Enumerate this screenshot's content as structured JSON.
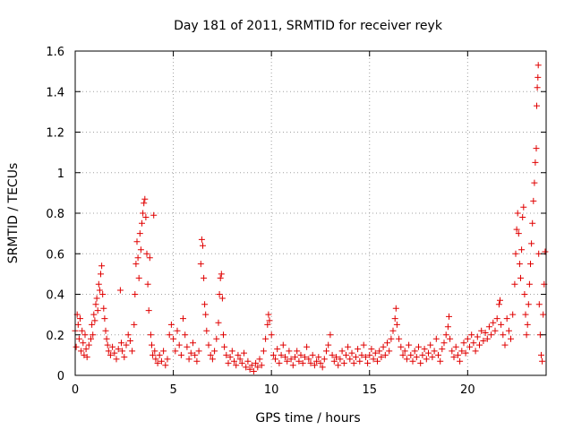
{
  "chart_data": {
    "type": "scatter",
    "title": "Day 181 of 2011, SRMTID for receiver reyk",
    "xlabel": "GPS time / hours",
    "ylabel": "SRMTID / TECUs",
    "xlim": [
      0,
      24
    ],
    "ylim": [
      0,
      1.6
    ],
    "x_ticks": [
      0,
      5,
      10,
      15,
      20
    ],
    "x_tick_labels": [
      "0",
      "5",
      "10",
      "15",
      "20"
    ],
    "y_ticks": [
      0,
      0.2,
      0.4,
      0.6,
      0.8,
      1.0,
      1.2,
      1.4,
      1.6
    ],
    "y_tick_labels": [
      "0",
      "0.2",
      "0.4",
      "0.6",
      "0.8",
      "1",
      "1.2",
      "1.4",
      "1.6"
    ],
    "grid": true,
    "marker": "plus",
    "color": "#e00000",
    "series": [
      {
        "name": "SRMTID",
        "points": [
          [
            0.0,
            0.22
          ],
          [
            0.05,
            0.14
          ],
          [
            0.1,
            0.3
          ],
          [
            0.15,
            0.25
          ],
          [
            0.2,
            0.18
          ],
          [
            0.25,
            0.28
          ],
          [
            0.3,
            0.12
          ],
          [
            0.35,
            0.22
          ],
          [
            0.4,
            0.16
          ],
          [
            0.45,
            0.1
          ],
          [
            0.5,
            0.2
          ],
          [
            0.55,
            0.13
          ],
          [
            0.6,
            0.09
          ],
          [
            0.7,
            0.15
          ],
          [
            0.8,
            0.18
          ],
          [
            0.85,
            0.25
          ],
          [
            0.9,
            0.2
          ],
          [
            0.95,
            0.3
          ],
          [
            1.0,
            0.27
          ],
          [
            1.05,
            0.35
          ],
          [
            1.1,
            0.38
          ],
          [
            1.15,
            0.32
          ],
          [
            1.2,
            0.45
          ],
          [
            1.25,
            0.42
          ],
          [
            1.3,
            0.5
          ],
          [
            1.35,
            0.54
          ],
          [
            1.4,
            0.4
          ],
          [
            1.45,
            0.33
          ],
          [
            1.5,
            0.28
          ],
          [
            1.55,
            0.22
          ],
          [
            1.6,
            0.18
          ],
          [
            1.65,
            0.15
          ],
          [
            1.7,
            0.12
          ],
          [
            1.8,
            0.1
          ],
          [
            1.9,
            0.14
          ],
          [
            2.0,
            0.11
          ],
          [
            2.1,
            0.08
          ],
          [
            2.2,
            0.13
          ],
          [
            2.3,
            0.42
          ],
          [
            2.35,
            0.16
          ],
          [
            2.4,
            0.12
          ],
          [
            2.5,
            0.09
          ],
          [
            2.6,
            0.15
          ],
          [
            2.7,
            0.2
          ],
          [
            2.8,
            0.17
          ],
          [
            2.9,
            0.12
          ],
          [
            3.0,
            0.25
          ],
          [
            3.05,
            0.4
          ],
          [
            3.1,
            0.55
          ],
          [
            3.15,
            0.66
          ],
          [
            3.2,
            0.58
          ],
          [
            3.25,
            0.48
          ],
          [
            3.3,
            0.7
          ],
          [
            3.35,
            0.62
          ],
          [
            3.4,
            0.75
          ],
          [
            3.45,
            0.8
          ],
          [
            3.5,
            0.85
          ],
          [
            3.55,
            0.87
          ],
          [
            3.6,
            0.78
          ],
          [
            3.65,
            0.6
          ],
          [
            3.7,
            0.45
          ],
          [
            3.75,
            0.32
          ],
          [
            3.8,
            0.58
          ],
          [
            3.85,
            0.2
          ],
          [
            3.9,
            0.15
          ],
          [
            3.95,
            0.1
          ],
          [
            4.0,
            0.79
          ],
          [
            4.05,
            0.12
          ],
          [
            4.1,
            0.08
          ],
          [
            4.2,
            0.06
          ],
          [
            4.3,
            0.1
          ],
          [
            4.4,
            0.07
          ],
          [
            4.5,
            0.12
          ],
          [
            4.6,
            0.05
          ],
          [
            4.7,
            0.08
          ],
          [
            4.8,
            0.2
          ],
          [
            4.9,
            0.25
          ],
          [
            5.0,
            0.18
          ],
          [
            5.1,
            0.12
          ],
          [
            5.2,
            0.22
          ],
          [
            5.3,
            0.15
          ],
          [
            5.4,
            0.1
          ],
          [
            5.5,
            0.28
          ],
          [
            5.6,
            0.2
          ],
          [
            5.7,
            0.14
          ],
          [
            5.8,
            0.08
          ],
          [
            5.9,
            0.11
          ],
          [
            6.0,
            0.16
          ],
          [
            6.1,
            0.1
          ],
          [
            6.2,
            0.07
          ],
          [
            6.3,
            0.12
          ],
          [
            6.4,
            0.55
          ],
          [
            6.45,
            0.67
          ],
          [
            6.5,
            0.64
          ],
          [
            6.55,
            0.48
          ],
          [
            6.6,
            0.35
          ],
          [
            6.65,
            0.3
          ],
          [
            6.7,
            0.22
          ],
          [
            6.8,
            0.15
          ],
          [
            6.9,
            0.1
          ],
          [
            7.0,
            0.08
          ],
          [
            7.1,
            0.12
          ],
          [
            7.2,
            0.18
          ],
          [
            7.3,
            0.26
          ],
          [
            7.35,
            0.4
          ],
          [
            7.4,
            0.48
          ],
          [
            7.45,
            0.5
          ],
          [
            7.5,
            0.38
          ],
          [
            7.55,
            0.2
          ],
          [
            7.6,
            0.14
          ],
          [
            7.7,
            0.1
          ],
          [
            7.8,
            0.06
          ],
          [
            7.9,
            0.09
          ],
          [
            8.0,
            0.12
          ],
          [
            8.1,
            0.07
          ],
          [
            8.2,
            0.05
          ],
          [
            8.3,
            0.1
          ],
          [
            8.4,
            0.08
          ],
          [
            8.5,
            0.06
          ],
          [
            8.6,
            0.11
          ],
          [
            8.7,
            0.04
          ],
          [
            8.8,
            0.07
          ],
          [
            8.9,
            0.03
          ],
          [
            9.0,
            0.05
          ],
          [
            9.1,
            0.02
          ],
          [
            9.2,
            0.06
          ],
          [
            9.3,
            0.04
          ],
          [
            9.4,
            0.08
          ],
          [
            9.5,
            0.05
          ],
          [
            9.6,
            0.12
          ],
          [
            9.7,
            0.18
          ],
          [
            9.8,
            0.25
          ],
          [
            9.85,
            0.3
          ],
          [
            9.9,
            0.27
          ],
          [
            10.0,
            0.2
          ],
          [
            10.1,
            0.1
          ],
          [
            10.2,
            0.08
          ],
          [
            10.3,
            0.13
          ],
          [
            10.4,
            0.06
          ],
          [
            10.5,
            0.1
          ],
          [
            10.6,
            0.15
          ],
          [
            10.7,
            0.09
          ],
          [
            10.8,
            0.07
          ],
          [
            10.9,
            0.12
          ],
          [
            11.0,
            0.08
          ],
          [
            11.1,
            0.05
          ],
          [
            11.2,
            0.09
          ],
          [
            11.3,
            0.12
          ],
          [
            11.4,
            0.07
          ],
          [
            11.5,
            0.1
          ],
          [
            11.6,
            0.06
          ],
          [
            11.7,
            0.09
          ],
          [
            11.8,
            0.14
          ],
          [
            11.9,
            0.08
          ],
          [
            12.0,
            0.06
          ],
          [
            12.1,
            0.1
          ],
          [
            12.2,
            0.05
          ],
          [
            12.3,
            0.07
          ],
          [
            12.4,
            0.09
          ],
          [
            12.5,
            0.06
          ],
          [
            12.6,
            0.04
          ],
          [
            12.7,
            0.08
          ],
          [
            12.8,
            0.12
          ],
          [
            12.9,
            0.15
          ],
          [
            13.0,
            0.2
          ],
          [
            13.1,
            0.1
          ],
          [
            13.2,
            0.07
          ],
          [
            13.3,
            0.09
          ],
          [
            13.4,
            0.05
          ],
          [
            13.5,
            0.08
          ],
          [
            13.6,
            0.12
          ],
          [
            13.7,
            0.06
          ],
          [
            13.8,
            0.1
          ],
          [
            13.9,
            0.14
          ],
          [
            14.0,
            0.08
          ],
          [
            14.1,
            0.11
          ],
          [
            14.2,
            0.06
          ],
          [
            14.3,
            0.09
          ],
          [
            14.4,
            0.13
          ],
          [
            14.5,
            0.07
          ],
          [
            14.6,
            0.1
          ],
          [
            14.7,
            0.15
          ],
          [
            14.8,
            0.09
          ],
          [
            14.9,
            0.06
          ],
          [
            15.0,
            0.1
          ],
          [
            15.1,
            0.13
          ],
          [
            15.2,
            0.08
          ],
          [
            15.3,
            0.11
          ],
          [
            15.4,
            0.07
          ],
          [
            15.5,
            0.12
          ],
          [
            15.6,
            0.09
          ],
          [
            15.7,
            0.14
          ],
          [
            15.8,
            0.1
          ],
          [
            15.9,
            0.16
          ],
          [
            16.0,
            0.12
          ],
          [
            16.1,
            0.18
          ],
          [
            16.2,
            0.22
          ],
          [
            16.3,
            0.28
          ],
          [
            16.35,
            0.33
          ],
          [
            16.4,
            0.25
          ],
          [
            16.5,
            0.18
          ],
          [
            16.6,
            0.14
          ],
          [
            16.7,
            0.1
          ],
          [
            16.8,
            0.12
          ],
          [
            16.9,
            0.08
          ],
          [
            17.0,
            0.15
          ],
          [
            17.1,
            0.1
          ],
          [
            17.2,
            0.07
          ],
          [
            17.3,
            0.12
          ],
          [
            17.4,
            0.09
          ],
          [
            17.5,
            0.14
          ],
          [
            17.6,
            0.06
          ],
          [
            17.7,
            0.1
          ],
          [
            17.8,
            0.13
          ],
          [
            17.9,
            0.08
          ],
          [
            18.0,
            0.11
          ],
          [
            18.1,
            0.15
          ],
          [
            18.2,
            0.09
          ],
          [
            18.3,
            0.12
          ],
          [
            18.4,
            0.18
          ],
          [
            18.5,
            0.1
          ],
          [
            18.6,
            0.07
          ],
          [
            18.7,
            0.13
          ],
          [
            18.8,
            0.16
          ],
          [
            18.9,
            0.2
          ],
          [
            19.0,
            0.24
          ],
          [
            19.05,
            0.29
          ],
          [
            19.1,
            0.18
          ],
          [
            19.2,
            0.12
          ],
          [
            19.3,
            0.09
          ],
          [
            19.4,
            0.14
          ],
          [
            19.5,
            0.1
          ],
          [
            19.6,
            0.07
          ],
          [
            19.7,
            0.12
          ],
          [
            19.8,
            0.16
          ],
          [
            19.9,
            0.11
          ],
          [
            20.0,
            0.18
          ],
          [
            20.1,
            0.14
          ],
          [
            20.2,
            0.2
          ],
          [
            20.3,
            0.16
          ],
          [
            20.4,
            0.12
          ],
          [
            20.5,
            0.19
          ],
          [
            20.6,
            0.15
          ],
          [
            20.7,
            0.22
          ],
          [
            20.8,
            0.17
          ],
          [
            20.9,
            0.21
          ],
          [
            21.0,
            0.18
          ],
          [
            21.1,
            0.24
          ],
          [
            21.2,
            0.2
          ],
          [
            21.3,
            0.26
          ],
          [
            21.4,
            0.22
          ],
          [
            21.5,
            0.28
          ],
          [
            21.6,
            0.35
          ],
          [
            21.65,
            0.37
          ],
          [
            21.7,
            0.25
          ],
          [
            21.8,
            0.2
          ],
          [
            21.9,
            0.15
          ],
          [
            22.0,
            0.28
          ],
          [
            22.1,
            0.22
          ],
          [
            22.2,
            0.18
          ],
          [
            22.3,
            0.3
          ],
          [
            22.4,
            0.45
          ],
          [
            22.45,
            0.6
          ],
          [
            22.5,
            0.72
          ],
          [
            22.55,
            0.8
          ],
          [
            22.6,
            0.7
          ],
          [
            22.65,
            0.55
          ],
          [
            22.7,
            0.48
          ],
          [
            22.75,
            0.62
          ],
          [
            22.8,
            0.78
          ],
          [
            22.85,
            0.83
          ],
          [
            22.9,
            0.4
          ],
          [
            22.95,
            0.3
          ],
          [
            23.0,
            0.2
          ],
          [
            23.05,
            0.25
          ],
          [
            23.1,
            0.35
          ],
          [
            23.15,
            0.45
          ],
          [
            23.2,
            0.55
          ],
          [
            23.25,
            0.65
          ],
          [
            23.3,
            0.75
          ],
          [
            23.35,
            0.86
          ],
          [
            23.4,
            0.95
          ],
          [
            23.45,
            1.05
          ],
          [
            23.5,
            1.12
          ],
          [
            23.52,
            1.33
          ],
          [
            23.55,
            1.42
          ],
          [
            23.58,
            1.47
          ],
          [
            23.6,
            1.53
          ],
          [
            23.62,
            0.6
          ],
          [
            23.65,
            0.35
          ],
          [
            23.7,
            0.2
          ],
          [
            23.75,
            0.1
          ],
          [
            23.8,
            0.07
          ],
          [
            23.85,
            0.3
          ],
          [
            23.9,
            0.45
          ],
          [
            23.95,
            0.61
          ]
        ]
      }
    ]
  }
}
